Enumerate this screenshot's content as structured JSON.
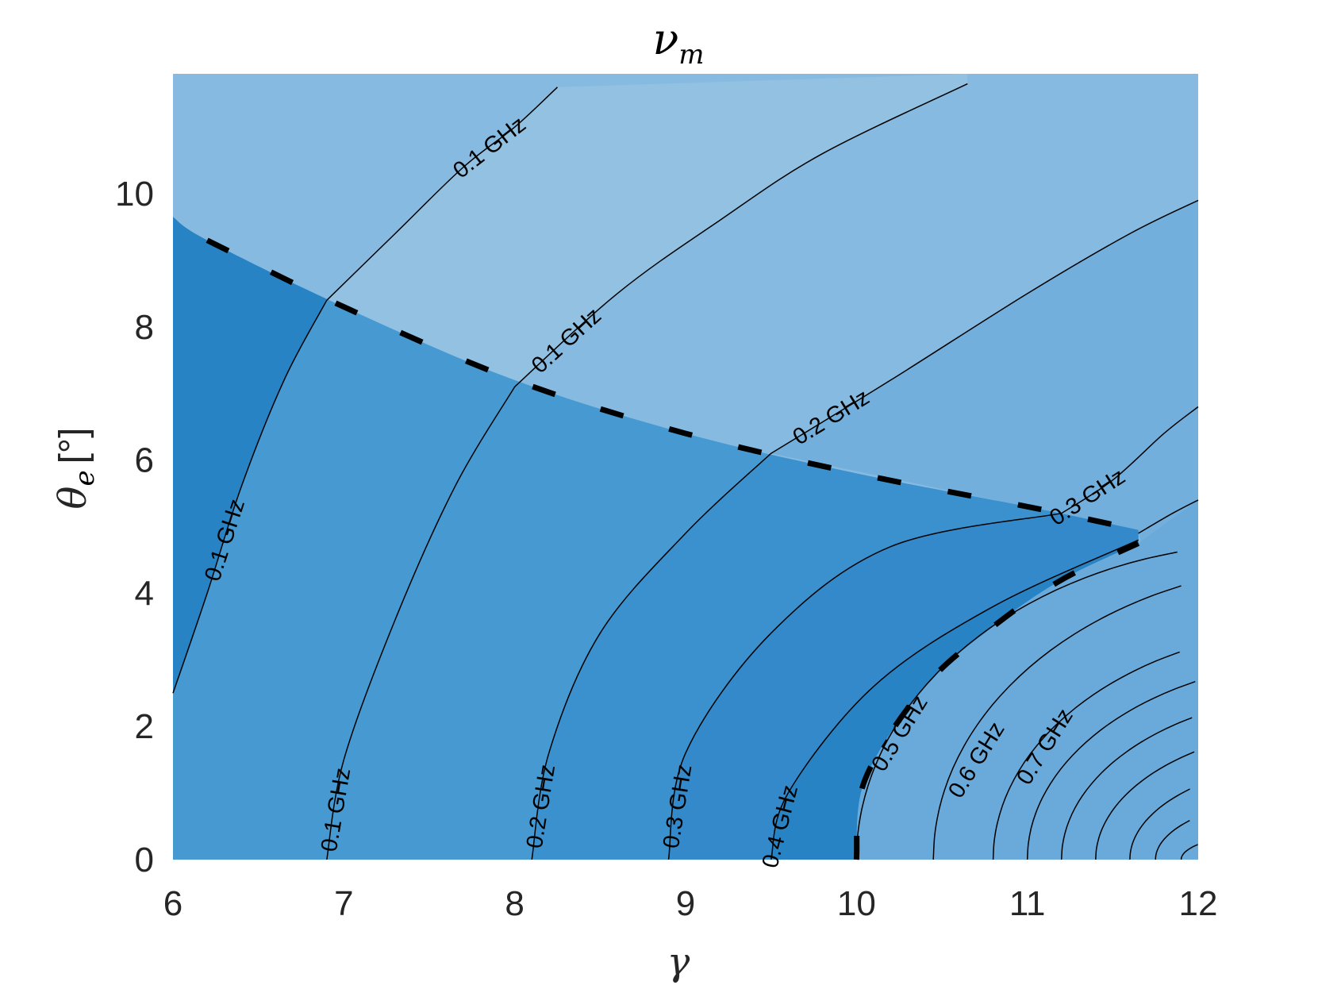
{
  "chart_data": {
    "type": "contour",
    "title_base": "ν",
    "title_sub": "m",
    "xlabel": "γ",
    "ylabel_base": "θ",
    "ylabel_sub": "e",
    "ylabel_unit": "[°]",
    "xlim": [
      6,
      12
    ],
    "ylim": [
      0,
      11.8
    ],
    "xticks": [
      "6",
      "7",
      "8",
      "9",
      "10",
      "11",
      "12"
    ],
    "yticks": [
      "0",
      "2",
      "4",
      "6",
      "8",
      "10"
    ],
    "fill_colors": {
      "upper_light": "#92c1e2",
      "upper_mid": "#86bae0",
      "upper_right": "#72afdc",
      "lower_left": "#2883c5",
      "lower_band": "#4799d1",
      "lower_band2": "#3b91cd",
      "lower_band3": "#3389c9",
      "lower_right": "#6aaada"
    },
    "boundary_curve": {
      "style": "dashed",
      "points": [
        [
          6.2,
          9.3
        ],
        [
          7.0,
          8.3
        ],
        [
          8.0,
          7.2
        ],
        [
          9.0,
          6.4
        ],
        [
          10.0,
          5.8
        ],
        [
          11.0,
          5.3
        ],
        [
          11.65,
          4.95
        ]
      ]
    },
    "inner_boundary": {
      "style": "dashed",
      "points": [
        [
          10.0,
          0.0
        ],
        [
          10.05,
          1.2
        ],
        [
          10.4,
          2.6
        ],
        [
          10.8,
          3.5
        ],
        [
          11.2,
          4.2
        ],
        [
          11.65,
          4.75
        ]
      ]
    },
    "upper_contours": [
      {
        "label": "0.1 GHz",
        "points": [
          [
            6.9,
            8.4
          ],
          [
            7.3,
            9.4
          ],
          [
            7.7,
            10.4
          ],
          [
            8.0,
            11.0
          ],
          [
            8.25,
            11.6
          ]
        ]
      },
      {
        "label": "0.1 GHz",
        "points": [
          [
            8.0,
            7.1
          ],
          [
            8.6,
            8.5
          ],
          [
            9.2,
            9.6
          ],
          [
            9.8,
            10.6
          ],
          [
            10.65,
            11.65
          ]
        ]
      },
      {
        "label": "0.2 GHz",
        "points": [
          [
            9.5,
            6.1
          ],
          [
            10.2,
            7.2
          ],
          [
            11.0,
            8.5
          ],
          [
            11.6,
            9.4
          ],
          [
            12.0,
            9.9
          ]
        ]
      },
      {
        "label": "0.3 GHz",
        "points": [
          [
            11.2,
            5.2
          ],
          [
            11.5,
            5.7
          ],
          [
            11.8,
            6.4
          ],
          [
            12.0,
            6.8
          ]
        ]
      },
      {
        "label": "",
        "points": [
          [
            11.65,
            4.9
          ],
          [
            11.85,
            5.2
          ],
          [
            12.0,
            5.4
          ]
        ]
      }
    ],
    "lower_contours": [
      {
        "label": "0.1 GHz",
        "points": [
          [
            6.0,
            2.5
          ],
          [
            6.2,
            4.0
          ],
          [
            6.4,
            5.6
          ],
          [
            6.65,
            7.2
          ],
          [
            6.9,
            8.4
          ]
        ]
      },
      {
        "label": "0.1 GHz",
        "points": [
          [
            6.9,
            0.0
          ],
          [
            7.0,
            1.5
          ],
          [
            7.3,
            3.6
          ],
          [
            7.65,
            5.6
          ],
          [
            8.0,
            7.1
          ]
        ]
      },
      {
        "label": "0.2 GHz",
        "points": [
          [
            8.1,
            0.0
          ],
          [
            8.2,
            1.6
          ],
          [
            8.5,
            3.4
          ],
          [
            9.0,
            4.9
          ],
          [
            9.5,
            6.1
          ]
        ]
      },
      {
        "label": "0.3 GHz",
        "points": [
          [
            8.9,
            0.0
          ],
          [
            9.0,
            1.6
          ],
          [
            9.5,
            3.4
          ],
          [
            10.2,
            4.7
          ],
          [
            11.2,
            5.2
          ]
        ]
      },
      {
        "label": "0.4 GHz",
        "points": [
          [
            9.5,
            0.0
          ],
          [
            9.6,
            1.0
          ],
          [
            10.1,
            2.6
          ],
          [
            10.8,
            3.8
          ],
          [
            11.65,
            4.8
          ]
        ]
      }
    ],
    "right_arcs": [
      {
        "label": "0.5 GHz",
        "x0": 10.0,
        "ytop": 4.75,
        "xr": 11.65
      },
      {
        "label": "0.6 GHz",
        "x0": 10.45,
        "ytop": 4.45,
        "xr": 12.0
      },
      {
        "label": "0.7 GHz",
        "x0": 10.8,
        "ytop": 3.5,
        "xr": 12.0
      },
      {
        "label": "",
        "x0": 11.0,
        "ytop": 3.0,
        "xr": 12.0
      },
      {
        "label": "",
        "x0": 11.2,
        "ytop": 2.5,
        "xr": 12.0
      },
      {
        "label": "",
        "x0": 11.4,
        "ytop": 2.0,
        "xr": 12.0
      },
      {
        "label": "",
        "x0": 11.6,
        "ytop": 1.5,
        "xr": 12.0
      },
      {
        "label": "",
        "x0": 11.75,
        "ytop": 1.0,
        "xr": 12.0
      },
      {
        "label": "",
        "x0": 11.9,
        "ytop": 0.5,
        "xr": 12.0
      }
    ]
  }
}
